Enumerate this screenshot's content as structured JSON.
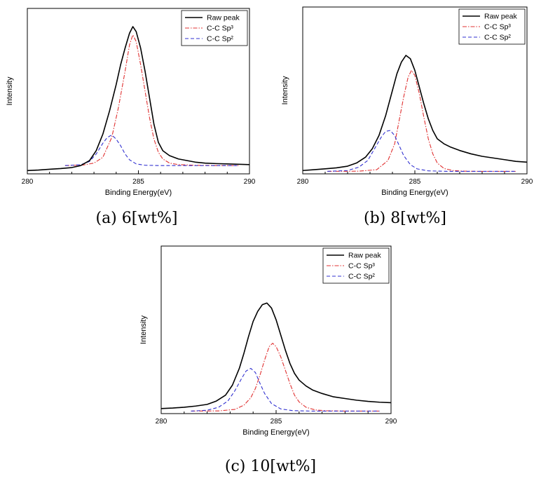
{
  "chart_data": [
    {
      "type": "line",
      "caption": "(a) 6[wt%]",
      "xlabel": "Binding Energy(eV)",
      "ylabel": "Intensity",
      "xlim": [
        280,
        290
      ],
      "ylim": [
        0,
        100
      ],
      "xticks": [
        "280",
        "285",
        "290"
      ],
      "grid": false,
      "legend": "top-right",
      "series": [
        {
          "name": "Raw peak",
          "style": "solid",
          "color": "#000000",
          "x": [
            280,
            280.5,
            281,
            281.5,
            282,
            282.4,
            282.8,
            283.1,
            283.4,
            283.7,
            284,
            284.2,
            284.4,
            284.6,
            284.75,
            284.9,
            285.1,
            285.3,
            285.5,
            285.7,
            285.9,
            286.1,
            286.4,
            286.8,
            287.2,
            287.6,
            288,
            288.5,
            289,
            289.5,
            290
          ],
          "y": [
            2,
            2.3,
            2.8,
            3.2,
            3.8,
            5,
            8,
            14,
            24,
            38,
            54,
            66,
            76,
            85,
            89,
            86,
            76,
            62,
            46,
            30,
            19,
            14,
            11,
            9,
            8,
            7,
            6.5,
            6.2,
            6,
            5.8,
            5.6
          ]
        },
        {
          "name": "C-C Sp³",
          "style": "dashdot",
          "color": "#e03030",
          "x": [
            281.7,
            282.5,
            283,
            283.4,
            283.8,
            284.1,
            284.4,
            284.6,
            284.75,
            284.9,
            285.1,
            285.3,
            285.5,
            285.7,
            285.9,
            286.1,
            286.4,
            286.8,
            287.5,
            288.5,
            289.5
          ],
          "y": [
            5,
            5.3,
            6.5,
            10,
            22,
            40,
            62,
            78,
            84,
            80,
            66,
            50,
            34,
            21,
            13,
            9,
            6.5,
            5.6,
            5.2,
            5,
            5
          ]
        },
        {
          "name": "C-C Sp²",
          "style": "dashed",
          "color": "#3030d0",
          "x": [
            281.7,
            282.4,
            282.8,
            283.1,
            283.4,
            283.6,
            283.8,
            284,
            284.2,
            284.4,
            284.6,
            284.9,
            285.3,
            286,
            287,
            288.5,
            289.5
          ],
          "y": [
            5,
            5.5,
            7.5,
            12,
            18.5,
            22,
            23.5,
            21,
            17,
            12,
            8.5,
            6,
            5.2,
            5,
            5,
            5,
            5
          ]
        }
      ]
    },
    {
      "type": "line",
      "caption": "(b) 8[wt%]",
      "xlabel": "Binding Energy(eV)",
      "ylabel": "Intensity",
      "xlim": [
        280,
        290
      ],
      "ylim": [
        0,
        100
      ],
      "xticks": [
        "280",
        "285",
        "290"
      ],
      "grid": false,
      "legend": "top-right",
      "series": [
        {
          "name": "Raw peak",
          "style": "solid",
          "color": "#000000",
          "x": [
            280,
            280.5,
            281,
            281.5,
            282,
            282.4,
            282.8,
            283.1,
            283.4,
            283.7,
            284,
            284.2,
            284.4,
            284.6,
            284.8,
            285,
            285.2,
            285.4,
            285.6,
            285.8,
            286,
            286.3,
            286.6,
            287,
            287.5,
            288,
            288.5,
            289,
            289.5,
            290
          ],
          "y": [
            2,
            2.5,
            3,
            3.6,
            4.6,
            6.5,
            10,
            15,
            23,
            35,
            50,
            60,
            67,
            71,
            69,
            62,
            52,
            42,
            33,
            26,
            21,
            18,
            16,
            14,
            12,
            10.5,
            9.5,
            8.5,
            7.5,
            7
          ]
        },
        {
          "name": "C-C Sp³",
          "style": "dashdot",
          "color": "#e03030",
          "x": [
            281.1,
            282.5,
            283.3,
            283.8,
            284.1,
            284.3,
            284.5,
            284.7,
            284.85,
            285,
            285.2,
            285.4,
            285.6,
            285.8,
            286,
            286.3,
            286.7,
            287.2,
            288,
            289.5
          ],
          "y": [
            1.5,
            1.6,
            2.5,
            8,
            18,
            32,
            46,
            58,
            62,
            59,
            48,
            34,
            21,
            12,
            6.5,
            3.2,
            2,
            1.6,
            1.5,
            1.5
          ]
        },
        {
          "name": "C-C Sp²",
          "style": "dashed",
          "color": "#3030d0",
          "x": [
            281.1,
            282,
            282.5,
            282.9,
            283.2,
            283.5,
            283.7,
            283.9,
            284.1,
            284.3,
            284.5,
            284.8,
            285.1,
            285.6,
            286.5,
            288,
            289.5
          ],
          "y": [
            1.5,
            2,
            4,
            8,
            15,
            22,
            25.5,
            26,
            23,
            17,
            11,
            5.5,
            3,
            1.8,
            1.5,
            1.5,
            1.5
          ]
        }
      ]
    },
    {
      "type": "line",
      "caption": "(c) 10[wt%]",
      "xlabel": "Binding Energy(eV)",
      "ylabel": "Intensity",
      "xlim": [
        280,
        290
      ],
      "ylim": [
        0,
        100
      ],
      "xticks": [
        "280",
        "285",
        "290"
      ],
      "grid": false,
      "legend": "top-right",
      "series": [
        {
          "name": "Raw peak",
          "style": "solid",
          "color": "#000000",
          "x": [
            280,
            280.5,
            281,
            281.5,
            282,
            282.4,
            282.8,
            283.1,
            283.4,
            283.6,
            283.8,
            284,
            284.2,
            284.4,
            284.6,
            284.8,
            285,
            285.2,
            285.4,
            285.6,
            285.8,
            286,
            286.3,
            286.6,
            287,
            287.5,
            288,
            288.5,
            289,
            289.5,
            290
          ],
          "y": [
            3,
            3.3,
            3.8,
            4.5,
            5.5,
            7.5,
            11,
            17,
            27,
            36,
            46,
            55,
            61,
            65,
            66,
            63,
            56,
            47,
            38,
            30,
            24,
            20,
            16.5,
            14,
            12,
            10,
            9,
            8,
            7.3,
            6.8,
            6.5
          ]
        },
        {
          "name": "C-C Sp³",
          "style": "dashdot",
          "color": "#e03030",
          "x": [
            281.3,
            282.5,
            283.2,
            283.6,
            283.9,
            284.1,
            284.3,
            284.5,
            284.7,
            284.85,
            285,
            285.2,
            285.4,
            285.6,
            285.8,
            286,
            286.3,
            286.7,
            287.2,
            288,
            289.5
          ],
          "y": [
            1.5,
            1.6,
            2.5,
            5,
            9.5,
            15,
            23,
            32,
            40,
            42,
            40,
            34,
            26,
            18,
            11,
            7,
            3.8,
            2.2,
            1.7,
            1.5,
            1.5
          ]
        },
        {
          "name": "C-C Sp²",
          "style": "dashed",
          "color": "#3030d0",
          "x": [
            281.3,
            282,
            282.5,
            282.9,
            283.2,
            283.5,
            283.7,
            283.9,
            284.1,
            284.3,
            284.5,
            284.8,
            285.2,
            285.7,
            286.5,
            288,
            289.5
          ],
          "y": [
            1.5,
            2,
            3.8,
            7.5,
            13.5,
            21,
            25.5,
            27,
            24.5,
            18,
            12,
            6,
            2.8,
            1.8,
            1.5,
            1.5,
            1.5
          ]
        }
      ]
    }
  ]
}
